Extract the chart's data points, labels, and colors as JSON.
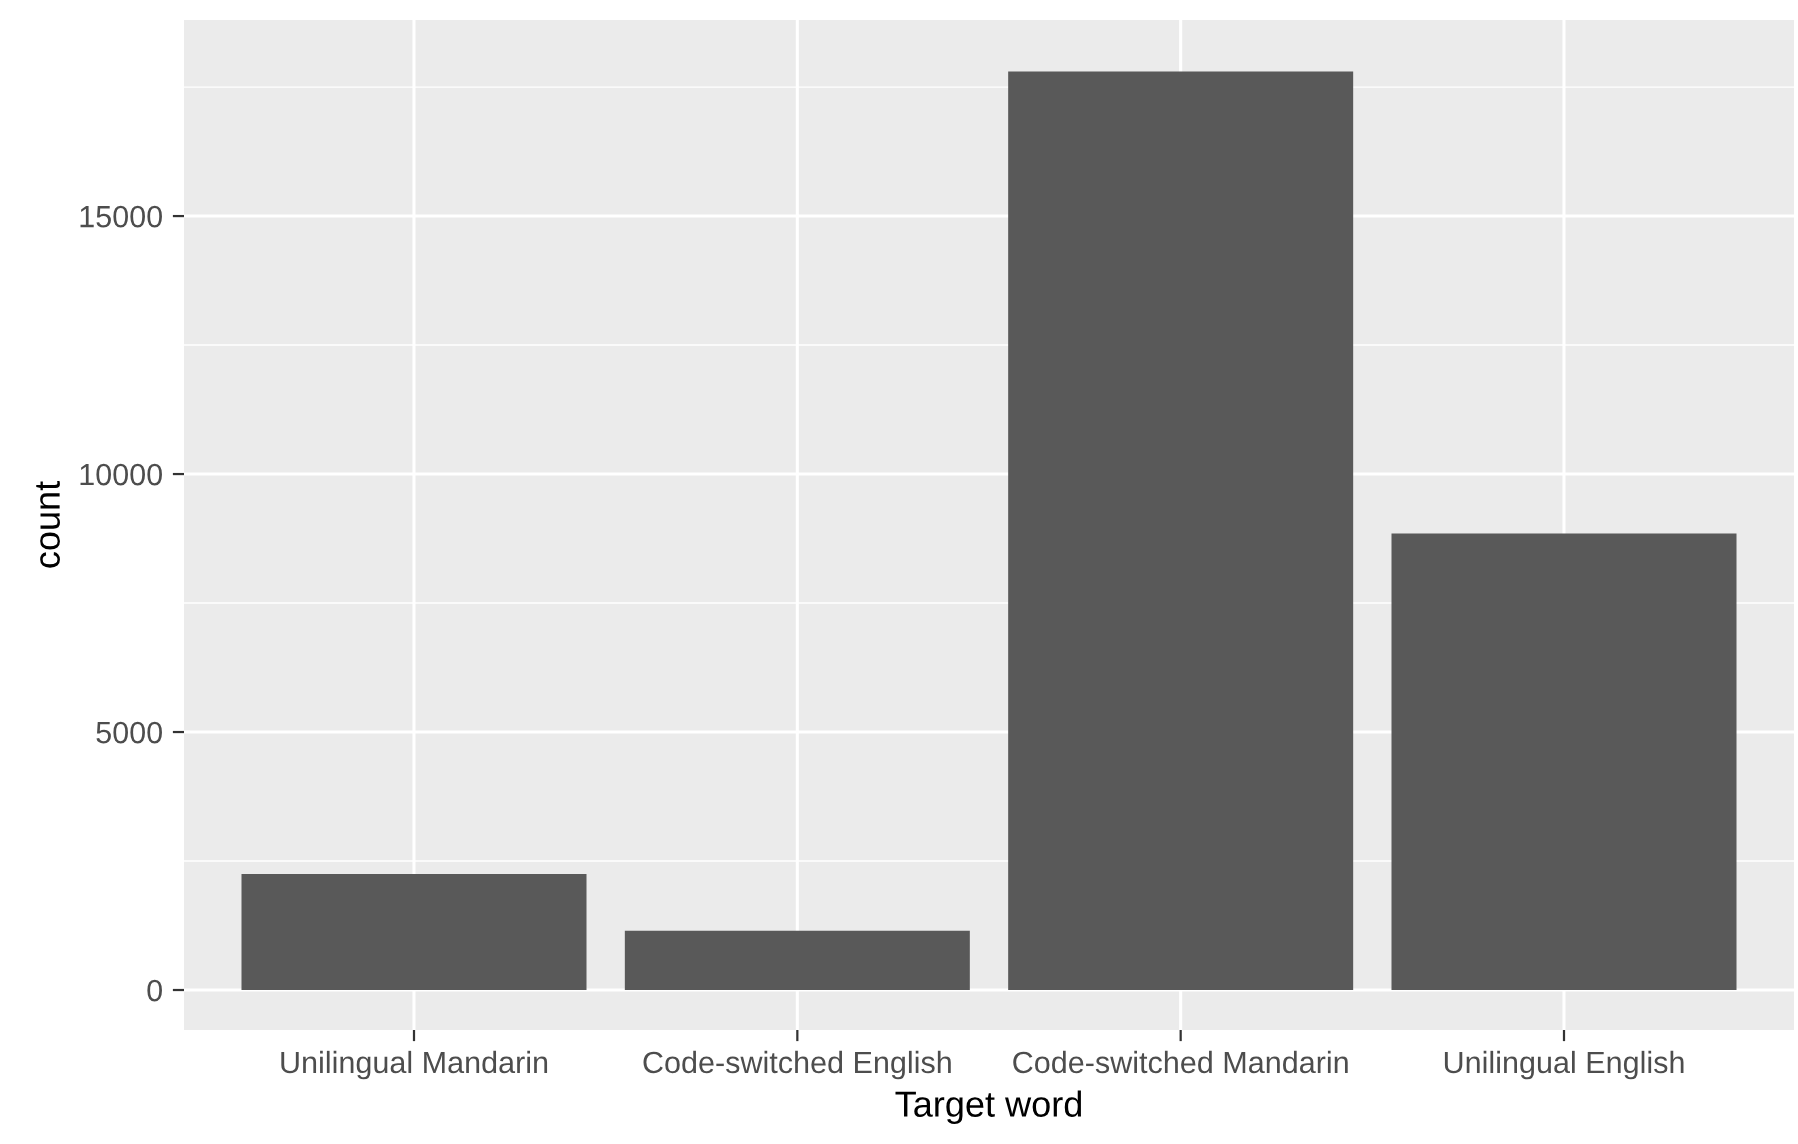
{
  "chart_data": {
    "type": "bar",
    "xlabel": "Target word",
    "ylabel": "count",
    "categories": [
      "Unilingual Mandarin",
      "Code-switched English",
      "Code-switched Mandarin",
      "Unilingual English"
    ],
    "values": [
      2250,
      1150,
      17800,
      8850
    ],
    "color": "#595959",
    "ylim": [
      -775,
      18800
    ],
    "yticks": [
      0,
      5000,
      10000,
      15000
    ],
    "grid": true
  }
}
